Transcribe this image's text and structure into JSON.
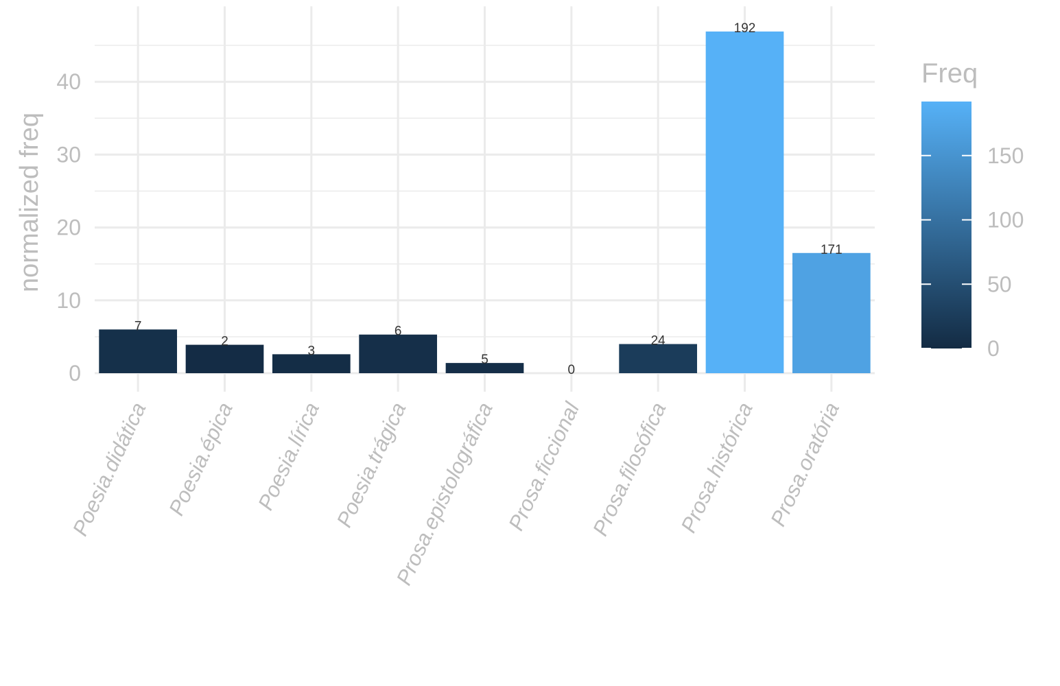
{
  "chart_data": {
    "type": "bar",
    "categories": [
      "Poesia.didática",
      "Poesia.épica",
      "Poesia.lírica",
      "Poesia.trágica",
      "Prosa.epistolográfica",
      "Prosa.ficcional",
      "Prosa.filosófica",
      "Prosa.histórica",
      "Prosa.oratória"
    ],
    "values": [
      6.0,
      3.9,
      2.6,
      5.3,
      1.4,
      0.0,
      4.0,
      46.9,
      16.5
    ],
    "freq": [
      7,
      2,
      3,
      6,
      5,
      0,
      24,
      192,
      171
    ],
    "data_labels": [
      "7",
      "2",
      "3",
      "6",
      "5",
      "0",
      "24",
      "192",
      "171"
    ],
    "ylabel": "normalized freq",
    "xlabel": "",
    "title": "",
    "ylim": [
      0,
      48
    ],
    "y_ticks": [
      "0",
      "10",
      "20",
      "30",
      "40"
    ],
    "y_tick_values": [
      0,
      10,
      20,
      30,
      40
    ],
    "legend": {
      "title": "Freq",
      "position": "right",
      "range": [
        0,
        192
      ],
      "ticks": [
        "0",
        "50",
        "100",
        "150"
      ],
      "tick_values": [
        0,
        50,
        100,
        150
      ],
      "colors": {
        "low": "#132b43",
        "high": "#56b1f7"
      }
    },
    "grid": true
  }
}
